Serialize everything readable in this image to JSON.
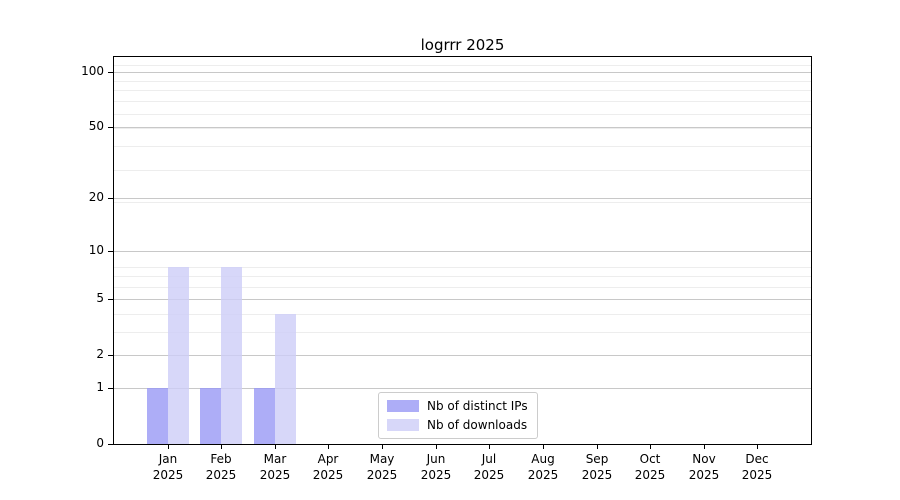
{
  "chart_data": {
    "type": "bar",
    "title": "logrrr 2025",
    "categories": [
      "Jan 2025",
      "Feb 2025",
      "Mar 2025",
      "Apr 2025",
      "May 2025",
      "Jun 2025",
      "Jul 2025",
      "Aug 2025",
      "Sep 2025",
      "Oct 2025",
      "Nov 2025",
      "Dec 2025"
    ],
    "series": [
      {
        "name": "Nb of distinct IPs",
        "color": "#9898f5",
        "values": [
          1,
          1,
          1,
          0,
          0,
          0,
          0,
          0,
          0,
          0,
          0,
          0
        ]
      },
      {
        "name": "Nb of downloads",
        "color": "#cdcdf8",
        "values": [
          8,
          8,
          4,
          0,
          0,
          0,
          0,
          0,
          0,
          0,
          0,
          0
        ]
      }
    ],
    "fill_alpha": 0.8,
    "yscale": "log1p",
    "yticks": [
      0,
      1,
      2,
      5,
      10,
      20,
      50,
      100
    ],
    "ylim": [
      0,
      120
    ],
    "xlabel": "",
    "ylabel": "",
    "grid": "horizontal",
    "grid_major_color": "#c8c8c8",
    "grid_minor_color": "#ededed",
    "legend_position": "lower center"
  }
}
